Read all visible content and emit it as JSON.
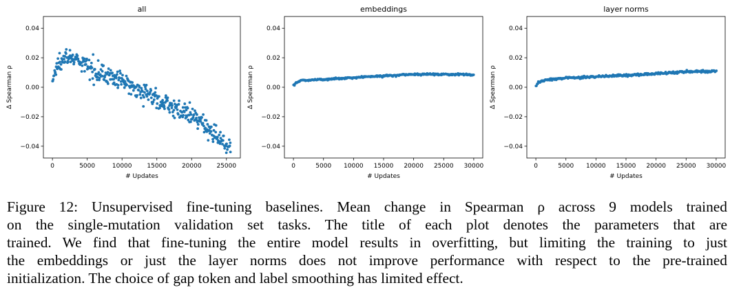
{
  "chart_data": [
    {
      "type": "scatter",
      "title": "all",
      "xlabel": "# Updates",
      "ylabel": "Δ Spearman ρ",
      "xlim": [
        -1300,
        27000
      ],
      "ylim": [
        -0.048,
        0.048
      ],
      "xticks": [
        0,
        5000,
        10000,
        15000,
        20000,
        25000
      ],
      "xtick_labels": [
        "0",
        "5000",
        "10000",
        "15000",
        "20000",
        "25000"
      ],
      "yticks": [
        0.04,
        0.02,
        0.0,
        -0.02,
        -0.04
      ],
      "ytick_labels": [
        "0.04",
        "0.02",
        "0.00",
        "−0.02",
        "−0.04"
      ],
      "color": "#1f77b4",
      "grid": false,
      "series": [
        {
          "name": "all",
          "x_range": [
            0,
            25600
          ],
          "n_points": 420,
          "trend": [
            [
              0,
              0.004
            ],
            [
              500,
              0.012
            ],
            [
              1500,
              0.022
            ],
            [
              3000,
              0.019
            ],
            [
              5000,
              0.014
            ],
            [
              8000,
              0.008
            ],
            [
              10000,
              0.004
            ],
            [
              12000,
              0.0
            ],
            [
              15000,
              -0.008
            ],
            [
              18000,
              -0.015
            ],
            [
              20000,
              -0.02
            ],
            [
              22000,
              -0.026
            ],
            [
              24000,
              -0.035
            ],
            [
              25600,
              -0.041
            ]
          ],
          "noise_sd": 0.003
        }
      ]
    },
    {
      "type": "scatter",
      "title": "embeddings",
      "xlabel": "# Updates",
      "ylabel": "Δ Spearman ρ",
      "xlim": [
        -1500,
        31500
      ],
      "ylim": [
        -0.048,
        0.048
      ],
      "xticks": [
        0,
        5000,
        10000,
        15000,
        20000,
        25000,
        30000
      ],
      "xtick_labels": [
        "0",
        "5000",
        "10000",
        "15000",
        "20000",
        "25000",
        "30000"
      ],
      "yticks": [
        0.04,
        0.02,
        0.0,
        -0.02,
        -0.04
      ],
      "ytick_labels": [
        "0.04",
        "0.02",
        "0.00",
        "−0.02",
        "−0.04"
      ],
      "color": "#1f77b4",
      "grid": false,
      "series": [
        {
          "name": "embeddings",
          "x_range": [
            0,
            30000
          ],
          "n_points": 300,
          "trend": [
            [
              0,
              0.001
            ],
            [
              400,
              0.003
            ],
            [
              1200,
              0.0045
            ],
            [
              3000,
              0.005
            ],
            [
              6000,
              0.0055
            ],
            [
              10000,
              0.0065
            ],
            [
              15000,
              0.0078
            ],
            [
              20000,
              0.0088
            ],
            [
              25000,
              0.0088
            ],
            [
              30000,
              0.0085
            ]
          ],
          "noise_sd": 0.0003
        }
      ]
    },
    {
      "type": "scatter",
      "title": "layer norms",
      "xlabel": "# Updates",
      "ylabel": "Δ Spearman ρ",
      "xlim": [
        -1500,
        31500
      ],
      "ylim": [
        -0.048,
        0.048
      ],
      "xticks": [
        0,
        5000,
        10000,
        15000,
        20000,
        25000,
        30000
      ],
      "xtick_labels": [
        "0",
        "5000",
        "10000",
        "15000",
        "20000",
        "25000",
        "30000"
      ],
      "yticks": [
        0.04,
        0.02,
        0.0,
        -0.02,
        -0.04
      ],
      "ytick_labels": [
        "0.04",
        "0.02",
        "0.00",
        "−0.02",
        "−0.04"
      ],
      "color": "#1f77b4",
      "grid": false,
      "series": [
        {
          "name": "layer norms",
          "x_range": [
            0,
            30000
          ],
          "n_points": 300,
          "trend": [
            [
              0,
              0.001
            ],
            [
              400,
              0.003
            ],
            [
              1500,
              0.005
            ],
            [
              4000,
              0.006
            ],
            [
              8000,
              0.0068
            ],
            [
              12000,
              0.0075
            ],
            [
              16000,
              0.0083
            ],
            [
              20000,
              0.0092
            ],
            [
              25000,
              0.0105
            ],
            [
              30000,
              0.011
            ]
          ],
          "noise_sd": 0.0004
        }
      ]
    }
  ],
  "caption": {
    "lines": [
      "Figure 12: Unsupervised fine-tuning baselines. Mean change in Spearman ρ across 9 models trained",
      "on the single-mutation validation set tasks. The title of each plot denotes the parameters that are",
      "trained. We find that fine-tuning the entire model results in overfitting, but limiting the training to just",
      "the embeddings or just the layer norms does not improve performance with respect to the pre-trained",
      "initialization. The choice of gap token and label smoothing has limited effect."
    ]
  }
}
